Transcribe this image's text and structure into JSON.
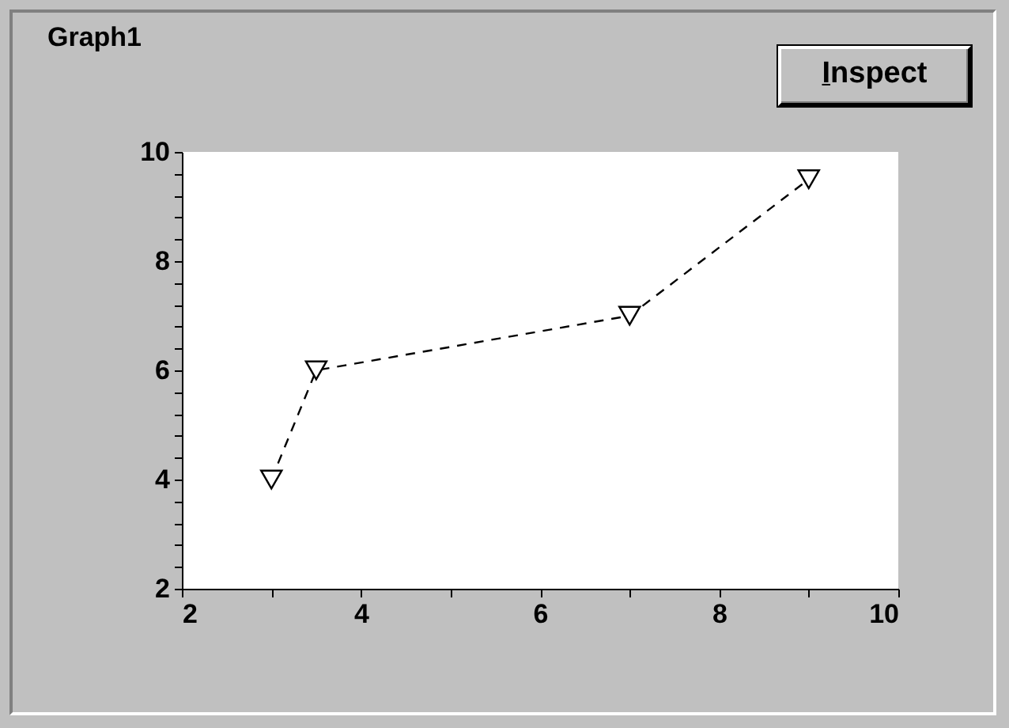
{
  "chart_data": {
    "type": "line",
    "title": "Graph1",
    "annotations": [
      "Inspect"
    ],
    "x": [
      3,
      3.5,
      7,
      9
    ],
    "series": [
      {
        "color": "#000000",
        "values": [
          4,
          6,
          7,
          9.5
        ]
      }
    ],
    "xlim": [
      2,
      10
    ],
    "ylim": [
      2,
      10
    ],
    "xticks": [
      2,
      {
        "value": 3,
        "label": null
      },
      4,
      {
        "value": 5,
        "label": null
      },
      6,
      {
        "value": 7,
        "label": null
      },
      8,
      {
        "value": 9,
        "label": null
      },
      10
    ],
    "yticks": [
      2,
      {
        "value": 2.4,
        "label": null
      },
      {
        "value": 2.8,
        "label": null
      },
      {
        "value": 3.2,
        "label": null
      },
      {
        "value": 3.6,
        "label": null
      },
      4,
      {
        "value": 4.4,
        "label": null
      },
      {
        "value": 4.8,
        "label": null
      },
      {
        "value": 5.2,
        "label": null
      },
      {
        "value": 5.6,
        "label": null
      },
      6,
      {
        "value": 6.4,
        "label": null
      },
      {
        "value": 6.8,
        "label": null
      },
      {
        "value": 7.2,
        "label": null
      },
      {
        "value": 7.6,
        "label": null
      },
      8,
      {
        "value": 8.4,
        "label": null
      },
      {
        "value": 8.8,
        "label": null
      },
      {
        "value": 9.2,
        "label": null
      },
      {
        "value": 9.6,
        "label": null
      },
      10
    ],
    "marker": "triangle",
    "line_style": "dashed"
  }
}
